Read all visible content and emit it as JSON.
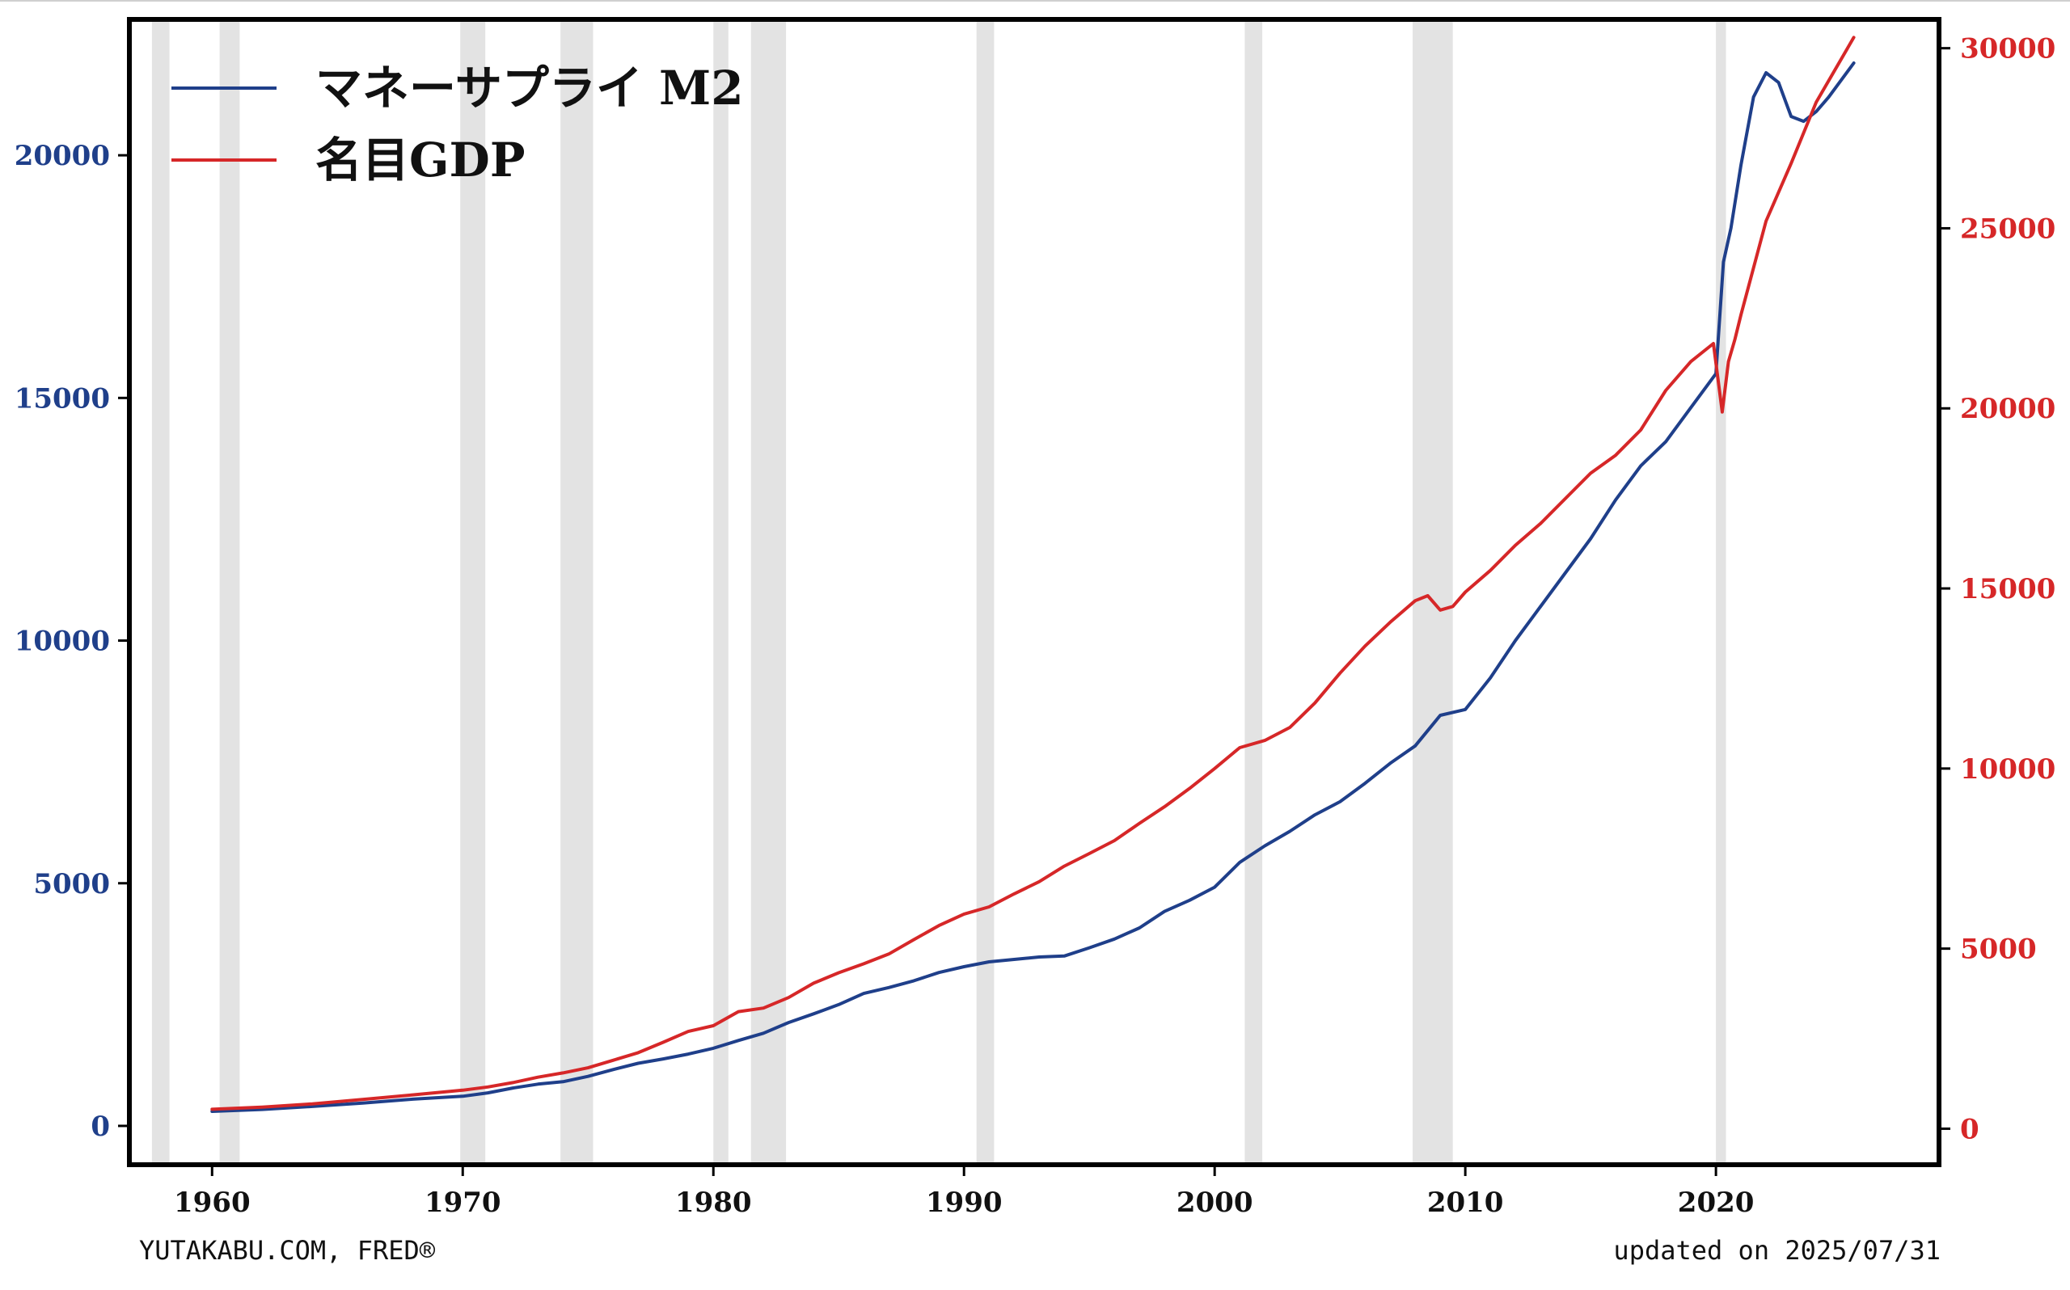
{
  "chart_data": {
    "type": "line",
    "title": "",
    "xlabel": "",
    "ylabel_left": "",
    "ylabel_right": "",
    "xlim": [
      1956.7,
      2028.9
    ],
    "ylim_left": [
      -800,
      22800
    ],
    "ylim_right": [
      -1000,
      30800
    ],
    "x_ticks": [
      1960,
      1970,
      1980,
      1990,
      2000,
      2010,
      2020
    ],
    "y_ticks_left": [
      0,
      5000,
      10000,
      15000,
      20000
    ],
    "y_ticks_right": [
      0,
      5000,
      10000,
      15000,
      20000,
      25000,
      30000
    ],
    "grid": false,
    "legend_position": "top-left",
    "recessions": [
      [
        1957.6,
        1958.3
      ],
      [
        1960.3,
        1961.1
      ],
      [
        1969.9,
        1970.9
      ],
      [
        1973.9,
        1975.2
      ],
      [
        1980.0,
        1980.6
      ],
      [
        1981.5,
        1982.9
      ],
      [
        1990.5,
        1991.2
      ],
      [
        2001.2,
        2001.9
      ],
      [
        2007.9,
        2009.5
      ],
      [
        2020.0,
        2020.4
      ]
    ],
    "series": [
      {
        "name": "マネーサプライ M2",
        "axis": "left",
        "color": "#1f3f8a",
        "x": [
          1960.0,
          1962.0,
          1964.0,
          1966.0,
          1968.0,
          1970.0,
          1971.0,
          1972.0,
          1973.0,
          1974.0,
          1975.0,
          1976.0,
          1977.0,
          1978.0,
          1979.0,
          1980.0,
          1981.0,
          1982.0,
          1983.0,
          1984.0,
          1985.0,
          1986.0,
          1987.0,
          1988.0,
          1989.0,
          1990.0,
          1991.0,
          1992.0,
          1993.0,
          1994.0,
          1995.0,
          1996.0,
          1997.0,
          1998.0,
          1999.0,
          2000.0,
          2001.0,
          2002.0,
          2003.0,
          2004.0,
          2005.0,
          2006.0,
          2007.0,
          2008.0,
          2009.0,
          2010.0,
          2011.0,
          2012.0,
          2013.0,
          2014.0,
          2015.0,
          2016.0,
          2017.0,
          2018.0,
          2019.0,
          2020.0,
          2020.3,
          2020.6,
          2021.0,
          2021.5,
          2022.0,
          2022.5,
          2023.0,
          2023.5,
          2024.0,
          2024.5,
          2025.5
        ],
        "values": [
          300,
          340,
          400,
          470,
          550,
          610,
          680,
          780,
          860,
          910,
          1020,
          1160,
          1290,
          1380,
          1480,
          1600,
          1760,
          1910,
          2130,
          2310,
          2500,
          2730,
          2850,
          2990,
          3160,
          3280,
          3380,
          3430,
          3480,
          3500,
          3670,
          3850,
          4080,
          4420,
          4650,
          4920,
          5430,
          5770,
          6070,
          6410,
          6680,
          7060,
          7470,
          7830,
          8460,
          8580,
          9230,
          10000,
          10700,
          11400,
          12100,
          12900,
          13600,
          14100,
          14800,
          15500,
          17800,
          18500,
          19800,
          21200,
          21700,
          21500,
          20800,
          20700,
          20900,
          21200,
          21900
        ]
      },
      {
        "name": "名目GDP",
        "axis": "right",
        "color": "#d62728",
        "x": [
          1960.0,
          1962.0,
          1964.0,
          1966.0,
          1968.0,
          1970.0,
          1971.0,
          1972.0,
          1973.0,
          1974.0,
          1975.0,
          1976.0,
          1977.0,
          1978.0,
          1979.0,
          1980.0,
          1981.0,
          1982.0,
          1983.0,
          1984.0,
          1985.0,
          1986.0,
          1987.0,
          1988.0,
          1989.0,
          1990.0,
          1991.0,
          1992.0,
          1993.0,
          1994.0,
          1995.0,
          1996.0,
          1997.0,
          1998.0,
          1999.0,
          2000.0,
          2001.0,
          2002.0,
          2003.0,
          2004.0,
          2005.0,
          2006.0,
          2007.0,
          2008.0,
          2008.5,
          2009.0,
          2009.5,
          2010.0,
          2011.0,
          2012.0,
          2013.0,
          2014.0,
          2015.0,
          2016.0,
          2017.0,
          2018.0,
          2019.0,
          2019.9,
          2020.25,
          2020.5,
          2020.75,
          2021.0,
          2022.0,
          2023.0,
          2024.0,
          2025.5
        ],
        "values": [
          540,
          600,
          690,
          810,
          940,
          1070,
          1160,
          1280,
          1430,
          1550,
          1690,
          1900,
          2110,
          2400,
          2700,
          2860,
          3250,
          3350,
          3640,
          4040,
          4330,
          4580,
          4850,
          5250,
          5640,
          5960,
          6160,
          6520,
          6860,
          7290,
          7640,
          8000,
          8480,
          8940,
          9450,
          10000,
          10580,
          10780,
          11140,
          11820,
          12650,
          13400,
          14060,
          14660,
          14800,
          14400,
          14500,
          14900,
          15500,
          16200,
          16800,
          17500,
          18200,
          18700,
          19400,
          20500,
          21300,
          21800,
          19900,
          21300,
          21900,
          22600,
          25200,
          26800,
          28500,
          30300
        ]
      }
    ]
  },
  "footer": {
    "source": "YUTAKABU.COM, FRED®",
    "updated": "updated on 2025/07/31"
  }
}
